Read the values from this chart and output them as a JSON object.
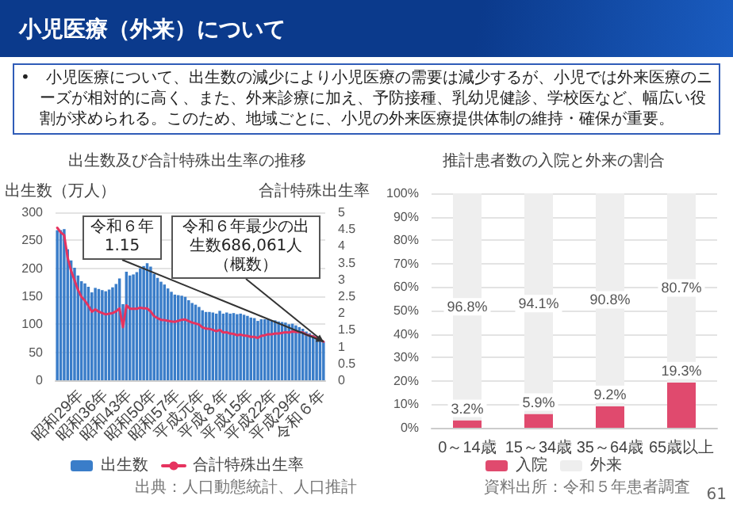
{
  "chart_data": [
    {
      "type": "other",
      "title": "小児医療（外来）について",
      "annotations": [
        "•　小児医療について、出生数の減少により小児医療の需要は減少するが、小児では外来医療のニーズが相対的に高く、また、外来診療に加え、予防接種、乳幼児健診、学校医など、幅広い役割が求められる。このため、地域ごとに、小児の外来医療提供体制の維持・確保が重要。",
        "61"
      ]
    },
    {
      "type": "bar",
      "title": "出生数及び合計特殊出生率の推移",
      "ylabel": "出生数（万人）",
      "y2label": "合計特殊出生率",
      "categories": [
        null,
        null,
        null,
        null,
        null,
        null,
        null,
        "昭和29年",
        null,
        null,
        null,
        null,
        null,
        null,
        "昭和36年",
        null,
        null,
        null,
        null,
        null,
        null,
        "昭和43年",
        null,
        null,
        null,
        null,
        null,
        null,
        "昭和50年",
        null,
        null,
        null,
        null,
        null,
        null,
        "昭和57年",
        null,
        null,
        null,
        null,
        null,
        null,
        "平成元年",
        null,
        null,
        null,
        null,
        null,
        null,
        "平成８年",
        null,
        null,
        null,
        null,
        null,
        null,
        "平成15年",
        null,
        null,
        null,
        null,
        null,
        null,
        "平成22年",
        null,
        null,
        null,
        null,
        null,
        null,
        "平成29年",
        null,
        null,
        null,
        null,
        null,
        null,
        "令和６年"
      ],
      "series": [
        {
          "name": "出生数",
          "type": "bar",
          "color": "#3a7dc9",
          "values": [
            268,
            268,
            270,
            234,
            214,
            201,
            187,
            177,
            173,
            167,
            157,
            165,
            163,
            161,
            159,
            162,
            166,
            172,
            182,
            136,
            194,
            187,
            189,
            193,
            200,
            204,
            209,
            203,
            190,
            183,
            176,
            171,
            164,
            158,
            153,
            152,
            151,
            149,
            143,
            138,
            135,
            131,
            125,
            122,
            122,
            121,
            119,
            124,
            119,
            121,
            119,
            120,
            118,
            119,
            117,
            115,
            112,
            111,
            106,
            109,
            109,
            109,
            107,
            107,
            105,
            104,
            103,
            100,
            101,
            98,
            95,
            92,
            87,
            84,
            81,
            77,
            73,
            69
          ]
        },
        {
          "name": "合計特殊出生率",
          "type": "line",
          "axis": "y2",
          "color": "#e6335f",
          "values": [
            4.54,
            4.4,
            4.32,
            3.65,
            3.26,
            2.98,
            2.69,
            2.48,
            2.37,
            2.22,
            2.04,
            2.11,
            2.04,
            2.0,
            1.96,
            1.98,
            2.0,
            2.05,
            2.14,
            1.58,
            2.23,
            2.13,
            2.13,
            2.13,
            2.16,
            2.14,
            2.14,
            2.05,
            1.91,
            1.85,
            1.8,
            1.79,
            1.77,
            1.75,
            1.74,
            1.77,
            1.8,
            1.81,
            1.76,
            1.72,
            1.69,
            1.66,
            1.57,
            1.54,
            1.53,
            1.5,
            1.46,
            1.5,
            1.42,
            1.43,
            1.39,
            1.38,
            1.34,
            1.36,
            1.33,
            1.32,
            1.29,
            1.29,
            1.26,
            1.32,
            1.34,
            1.37,
            1.37,
            1.39,
            1.39,
            1.41,
            1.43,
            1.42,
            1.45,
            1.44,
            1.43,
            1.42,
            1.36,
            1.33,
            1.3,
            1.26,
            1.2,
            1.15
          ]
        }
      ],
      "ylim": [
        0,
        300
      ],
      "yticks": [
        0,
        50,
        100,
        150,
        200,
        250,
        300
      ],
      "y2lim": [
        0,
        5
      ],
      "y2ticks": [
        0,
        0.5,
        1,
        1.5,
        2,
        2.5,
        3,
        3.5,
        4,
        4.5,
        5
      ],
      "grid": "y",
      "legend": "bottom",
      "marker": "none",
      "annotations": [
        {
          "text": "令和６年最少の出生数686,061人（概数）",
          "x": "令和６年",
          "y": 69
        },
        "令和６年1.15",
        "出典：人口動態統計、人口推計"
      ]
    },
    {
      "type": "bar",
      "title": "推計患者数の入院と外来の割合",
      "stacked": true,
      "categories": [
        "0～14歳",
        "15～34歳",
        "35～64歳",
        "65歳以上"
      ],
      "series": [
        {
          "name": "入院",
          "color": "#e04a6e",
          "values": [
            3.2,
            5.9,
            9.2,
            19.3
          ],
          "value_labels": [
            "3.2%",
            "5.9%",
            "9.2%",
            "19.3%"
          ]
        },
        {
          "name": "外来",
          "color": "#eeeeee",
          "values": [
            96.8,
            94.1,
            90.8,
            80.7
          ],
          "value_labels": [
            "96.8%",
            "94.1%",
            "90.8%",
            "80.7%"
          ]
        }
      ],
      "ylim": [
        0,
        100
      ],
      "yticks": [
        {
          "value": 0,
          "label": "0%"
        },
        {
          "value": 10,
          "label": "10%"
        },
        {
          "value": 20,
          "label": "20%"
        },
        {
          "value": 30,
          "label": "30%"
        },
        {
          "value": 40,
          "label": "40%"
        },
        {
          "value": 50,
          "label": "50%"
        },
        {
          "value": 60,
          "label": "60%"
        },
        {
          "value": 70,
          "label": "70%"
        },
        {
          "value": 80,
          "label": "80%"
        },
        {
          "value": 90,
          "label": "90%"
        },
        {
          "value": 100,
          "label": "100%"
        }
      ],
      "grid": "y",
      "legend": "bottom",
      "annotations": [
        "資料出所：令和５年患者調査"
      ]
    }
  ]
}
